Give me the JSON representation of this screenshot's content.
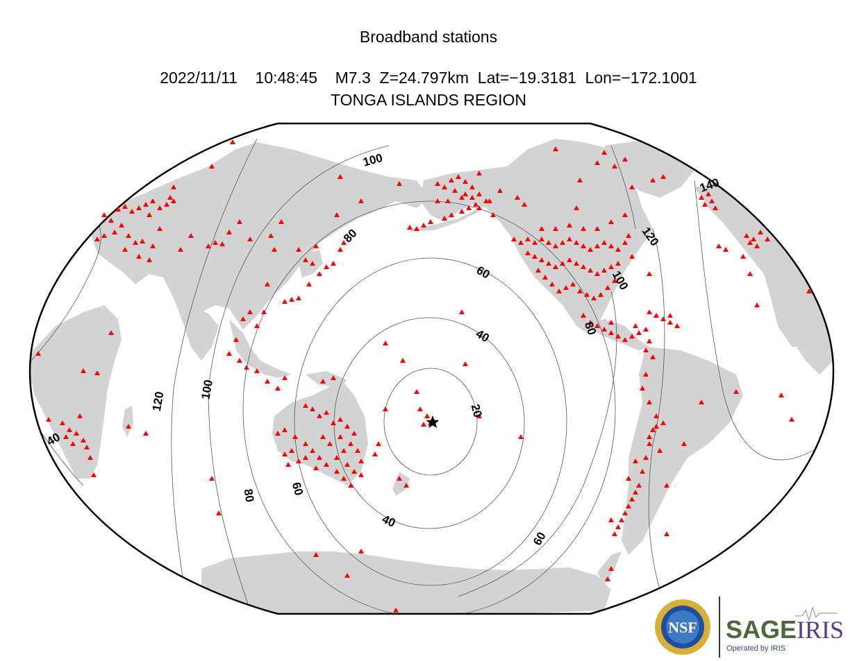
{
  "header": {
    "title": "Broadband stations",
    "event_line": "2022/11/11    10:48:45    M7.3  Z=24.797km  Lat=−19.3181  Lon=−172.1001",
    "region": "TONGA ISLANDS REGION"
  },
  "event": {
    "date": "2022/11/11",
    "time": "10:48:45",
    "magnitude": "M7.3",
    "depth": "Z=24.797km",
    "lat": -19.3181,
    "lon": -172.1001,
    "marker": "star-icon"
  },
  "distance_contours": {
    "unit": "degrees",
    "labels": [
      "20",
      "40",
      "60",
      "80",
      "100",
      "120",
      "140"
    ]
  },
  "stations": {
    "marker": "triangle-icon",
    "color": "#ff0000"
  },
  "colors": {
    "land": "#d3d3d3",
    "ocean": "#ffffff",
    "station": "#ff0000",
    "contour": "#555555"
  },
  "logos": {
    "nsf": "NSF",
    "sage": "SAGE",
    "iris": "IRIS",
    "operated_by": "Operated by IRIS"
  }
}
